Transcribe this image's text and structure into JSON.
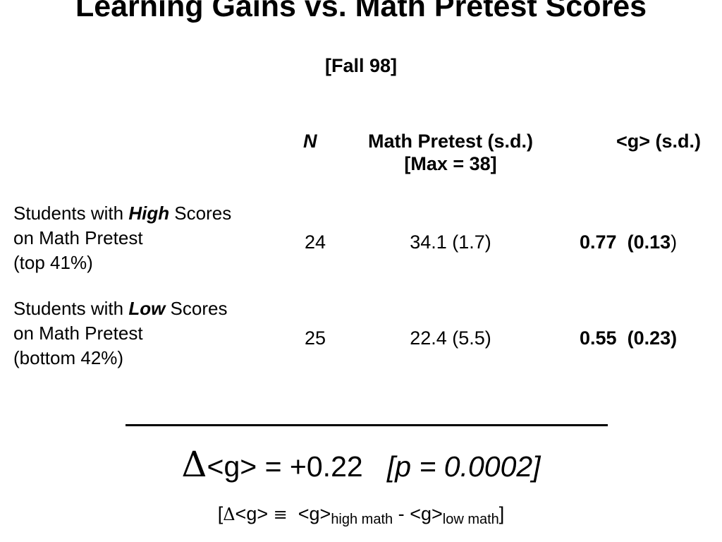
{
  "slide": {
    "title": "Learning Gains vs. Math Pretest Scores",
    "subtitle": "[Fall 98]"
  },
  "table": {
    "headers": {
      "n": "N",
      "pretest_line1": "Math Pretest (s.d.)",
      "pretest_line2": "[Max = 38]",
      "gain": "<g> (s.d.)"
    },
    "rows": [
      {
        "label_prefix": "Students with ",
        "label_emphasis": "High",
        "label_suffix": " Scores",
        "label_line2": "on Math Pretest",
        "label_line3": "(top 41%)",
        "n": "24",
        "pretest": "34.1 (1.7)",
        "gain_mean": "0.77",
        "gain_sd_open": "(0.13",
        "gain_sd_close": ")"
      },
      {
        "label_prefix": "Students with ",
        "label_emphasis": "Low",
        "label_suffix": " Scores",
        "label_line2": "on Math Pretest",
        "label_line3": "(bottom 42%)",
        "n": "25",
        "pretest": "22.4  (5.5)",
        "gain_mean": "0.55",
        "gain_sd": "(0.23)"
      }
    ]
  },
  "result": {
    "delta_symbol": "Δ",
    "equation": "<g> = +0.22",
    "pvalue": "[p = 0.0002]"
  },
  "definition": {
    "open_bracket": "[",
    "delta_symbol": "Δ",
    "g_left": "<g>",
    "equiv_symbol": "≡",
    "g_high": "<g>",
    "high_sub": "high math",
    "minus": "-",
    "g_low": "<g>",
    "low_sub": "low math",
    "close_bracket": "]"
  }
}
